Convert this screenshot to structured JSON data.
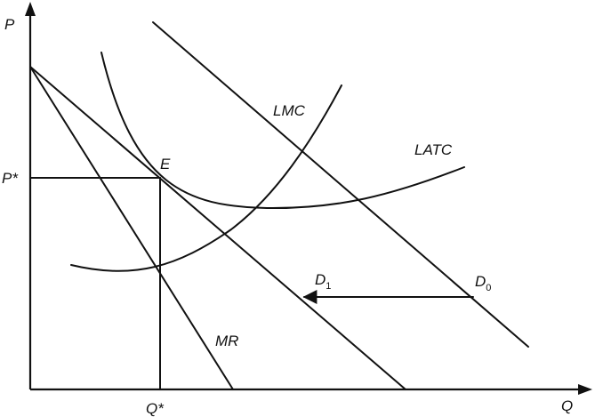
{
  "axes": {
    "y_label": "P",
    "x_label": "Q",
    "y_mark": "P*",
    "x_mark": "Q*"
  },
  "point": {
    "label": "E"
  },
  "curves": {
    "lmc": "LMC",
    "latc": "LATC",
    "mr": "MR",
    "d1": {
      "main": "D",
      "sub": "1"
    },
    "d0": {
      "main": "D",
      "sub": "0"
    }
  },
  "colors": {
    "ink": "#111111",
    "background": "#ffffff"
  }
}
